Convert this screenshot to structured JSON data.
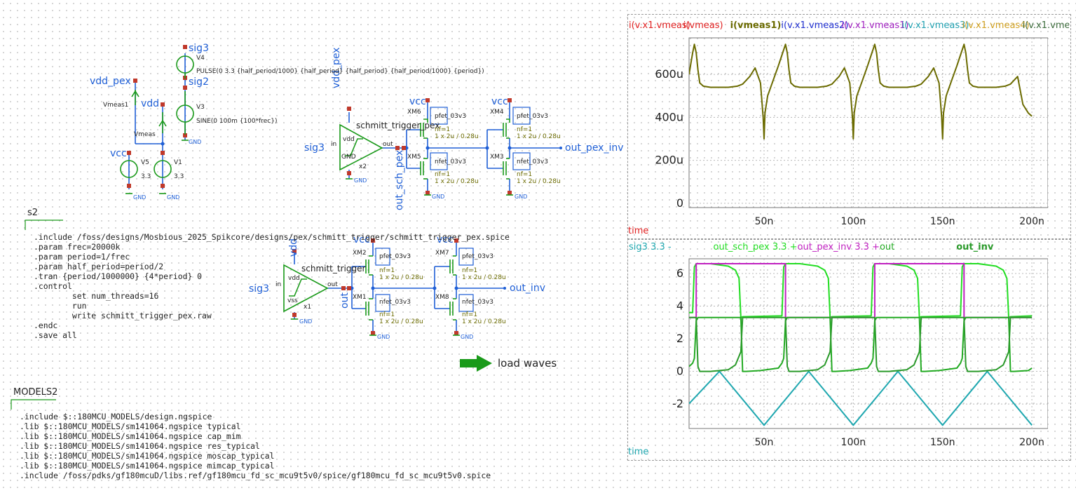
{
  "schematic": {
    "nets": {
      "sig3_top": "sig3",
      "sig2": "sig2",
      "vdd_pex": "vdd_pex",
      "vdd": "vdd",
      "vcc": "vcc",
      "vmeas1": "Vmeas1",
      "vmeas": "Vmeas",
      "sig3_a": "sig3",
      "sig3_b": "sig3",
      "vdd_pex_rot": "vdd_pex",
      "vdd_rot": "vdd",
      "out_sch_pex": "out_sch_pex",
      "out_rot": "out",
      "out_pex_inv": "out_pex_inv",
      "out_inv": "out_inv",
      "vcc_xm6": "vcc",
      "vcc_xm4": "vcc",
      "vcc_xm2": "vcc",
      "vcc_xm7": "vcc",
      "gnd": "GND"
    },
    "sources": {
      "v4_name": "V4",
      "v4_value": "PULSE(0 3.3 {half_period/1000} {half_period} {half_period} {half_period/1000}  {period})",
      "v3_name": "V3",
      "v3_value": "SINE(0 100m {100*frec})",
      "v5_name": "V5",
      "v5_value": "3.3",
      "v1_name": "V1",
      "v1_value": "3.3"
    },
    "buffers": {
      "x2_title": "schmitt_trigger_pex",
      "x2_inst": "x2",
      "x2_top": "vdd",
      "x2_bot": "GND",
      "x1_title": "schmitt_trigger",
      "x1_inst": "x1",
      "x1_top": "vdd",
      "x1_bot": "vss",
      "pin_in": "in",
      "pin_out": "out"
    },
    "transistors": {
      "pfet": "pfet_03v3",
      "nfet": "nfet_03v3",
      "nf": "nf=1",
      "size": "1 x 2u / 0.28u",
      "xm6": "XM6",
      "xm5": "XM5",
      "xm4": "XM4",
      "xm3": "XM3",
      "xm2": "XM2",
      "xm1": "XM1",
      "xm7": "XM7",
      "xm8": "XM8"
    },
    "s2_label": "s2",
    "code_block": [
      ".include /foss/designs/Mosbious_2025_Spikcore/designs/pex/schmitt_trigger/schmitt_trigger_pex.spice",
      ".param frec=20000k",
      ".param period=1/frec",
      ".param half_period=period/2",
      ".tran {period/1000000} {4*period} 0",
      ".control",
      "        set num_threads=16",
      "        run",
      "        write schmitt_trigger_pex.raw",
      ".endc",
      ".save all"
    ],
    "models_label": "MODELS2",
    "models_block": [
      ".include $::180MCU_MODELS/design.ngspice",
      ".lib $::180MCU_MODELS/sm141064.ngspice typical",
      ".lib $::180MCU_MODELS/sm141064.ngspice cap_mim",
      ".lib $::180MCU_MODELS/sm141064.ngspice res_typical",
      ".lib $::180MCU_MODELS/sm141064.ngspice moscap_typical",
      ".lib $::180MCU_MODELS/sm141064.ngspice mimcap_typical",
      ".include /foss/pdks/gf180mcuD/libs.ref/gf180mcu_fd_sc_mcu9t5v0/spice/gf180mcu_fd_sc_mcu9t5v0.spice"
    ],
    "load_waves": "load waves",
    "colors": {
      "net": "#1f5fd6",
      "wire": "#1f5fd6",
      "component": "#1a9a1a",
      "pin": "#c0392b",
      "param": "#6b6b00"
    }
  },
  "plots": {
    "top": {
      "legend": [
        {
          "text": "i(v.x1.vmeas)",
          "color": "#e02020"
        },
        {
          "text": "i(vmeas)",
          "color": "#e02020"
        },
        {
          "text": "i(vmeas1)",
          "color": "#6b6b00"
        },
        {
          "text": "i(v.x1.vmeas2)",
          "color": "#1f2fd0"
        },
        {
          "text": "i(v.x1.vmeas1)",
          "color": "#a020c0"
        },
        {
          "text": "i(v.x1.vmeas3)",
          "color": "#20a0b0"
        },
        {
          "text": "i(v.x1.vmeas4)",
          "color": "#d0a020"
        },
        {
          "text": "i(v.x1.vmeas5)",
          "color": "#3a6a3a"
        },
        {
          "text": "i(v.x1.vme",
          "color": "#1f2fd0"
        }
      ],
      "xlabel": "time"
    },
    "bottom": {
      "legend": [
        {
          "text": "sig3 3.3 -",
          "color": "#20a8b0"
        },
        {
          "text": "out_sch_pex 3.3 +",
          "color": "#22dd22"
        },
        {
          "text": "out_pex_inv 3.3 +",
          "color": "#c020c0"
        },
        {
          "text": "out",
          "color": "#22aa22"
        },
        {
          "text": "out_inv",
          "color": "#2a9a2a"
        }
      ],
      "xlabel": "time"
    },
    "chart_data": [
      {
        "type": "line",
        "title": "",
        "xlabel": "time",
        "ylabel": "",
        "x_ticks": [
          "50n",
          "100n",
          "150n",
          "200n"
        ],
        "y_ticks": [
          "0",
          "200u",
          "400u",
          "600u"
        ],
        "xlim": [
          8e-09,
          2.09e-07
        ],
        "ylim": [
          -2e-05,
          0.00077
        ],
        "series": [
          {
            "name": "i(vmeas1)",
            "color": "#6b6b00",
            "x": [
              8e-09,
              9e-09,
              1e-08,
              1.1e-08,
              1.2e-08,
              1.3e-08,
              1.4e-08,
              1.6e-08,
              2e-08,
              2.5e-08,
              3e-08,
              3.5e-08,
              3.8e-08,
              4.2e-08,
              4.5e-08,
              4.8e-08,
              4.95e-08,
              5e-08,
              5.05e-08,
              5.2e-08,
              5.5e-08,
              5.8e-08,
              6e-08,
              6.2e-08,
              6.3e-08,
              6.4e-08,
              6.5e-08,
              6.7e-08,
              7e-08,
              7.5e-08,
              8e-08,
              8.5e-08,
              8.8e-08,
              9.2e-08,
              9.5e-08,
              9.8e-08,
              9.95e-08,
              1e-07,
              1.005e-07,
              1.02e-07,
              1.05e-07,
              1.08e-07,
              1.1e-07,
              1.12e-07,
              1.13e-07,
              1.14e-07,
              1.15e-07,
              1.17e-07,
              1.2e-07,
              1.25e-07,
              1.3e-07,
              1.35e-07,
              1.38e-07,
              1.42e-07,
              1.45e-07,
              1.48e-07,
              1.495e-07,
              1.5e-07,
              1.505e-07,
              1.52e-07,
              1.55e-07,
              1.58e-07,
              1.6e-07,
              1.62e-07,
              1.63e-07,
              1.64e-07,
              1.65e-07,
              1.67e-07,
              1.7e-07,
              1.75e-07,
              1.8e-07,
              1.85e-07,
              1.88e-07,
              1.92e-07,
              1.95e-07,
              1.98e-07,
              2e-07
            ],
            "values": [
              0.0006,
              0.00065,
              0.0007,
              0.00074,
              0.0007,
              0.00062,
              0.00056,
              0.000545,
              0.00054,
              0.00054,
              0.00054,
              0.000545,
              0.000555,
              0.00059,
              0.00063,
              0.00056,
              0.0004,
              0.0003,
              0.00042,
              0.0005,
              0.00057,
              0.00064,
              0.00069,
              0.00074,
              0.0007,
              0.00062,
              0.00056,
              0.000545,
              0.00054,
              0.00054,
              0.00054,
              0.000545,
              0.000555,
              0.00059,
              0.00063,
              0.00056,
              0.0004,
              0.0003,
              0.00042,
              0.0005,
              0.00057,
              0.00064,
              0.00069,
              0.00074,
              0.0007,
              0.00062,
              0.00056,
              0.000545,
              0.00054,
              0.00054,
              0.00054,
              0.000545,
              0.000555,
              0.00059,
              0.00063,
              0.00056,
              0.0004,
              0.0003,
              0.00042,
              0.0005,
              0.00057,
              0.00064,
              0.00069,
              0.00074,
              0.0007,
              0.00062,
              0.00056,
              0.000545,
              0.00054,
              0.00054,
              0.00054,
              0.000545,
              0.000555,
              0.00059,
              0.00046,
              0.00042,
              0.000405
            ]
          }
        ]
      },
      {
        "type": "line",
        "title": "",
        "xlabel": "time",
        "ylabel": "",
        "x_ticks": [
          "50n",
          "100n",
          "150n",
          "200n"
        ],
        "y_ticks": [
          "-2",
          "0",
          "2",
          "4",
          "6"
        ],
        "xlim": [
          8e-09,
          2.09e-07
        ],
        "ylim": [
          -3.5,
          6.9
        ],
        "series": [
          {
            "name": "sig3",
            "color": "#20a8b0",
            "x": [
              8e-09,
              2.5e-08,
              5e-08,
              7.5e-08,
              1e-07,
              1.25e-07,
              1.5e-07,
              1.75e-07,
              2e-07
            ],
            "values": [
              -1.98,
              0.0,
              -3.3,
              0.0,
              -3.3,
              0.0,
              -3.3,
              0.0,
              -3.3
            ]
          },
          {
            "name": "out_sch_pex",
            "color": "#22dd22",
            "x": [
              8e-09,
              1e-08,
              1.1e-08,
              1.2e-08,
              2e-08,
              3e-08,
              3.4e-08,
              3.6e-08,
              3.7e-08,
              3.8e-08,
              6e-08,
              6.1e-08,
              6.2e-08,
              7e-08,
              8e-08,
              8.4e-08,
              8.6e-08,
              8.7e-08,
              8.8e-08,
              1.1e-07,
              1.11e-07,
              1.12e-07,
              1.2e-07,
              1.3e-07,
              1.34e-07,
              1.36e-07,
              1.37e-07,
              1.38e-07,
              1.6e-07,
              1.61e-07,
              1.62e-07,
              1.7e-07,
              1.8e-07,
              1.84e-07,
              1.86e-07,
              1.87e-07,
              1.88e-07,
              2e-07
            ],
            "values": [
              3.6,
              3.6,
              6.4,
              6.6,
              6.6,
              6.45,
              6.2,
              5.7,
              3.3,
              3.35,
              3.4,
              6.4,
              6.6,
              6.6,
              6.45,
              6.2,
              5.7,
              3.3,
              3.35,
              3.4,
              6.4,
              6.6,
              6.6,
              6.45,
              6.2,
              5.7,
              3.3,
              3.35,
              3.4,
              6.4,
              6.6,
              6.6,
              6.45,
              6.2,
              5.7,
              3.3,
              3.35,
              3.4
            ]
          },
          {
            "name": "out_pex_inv",
            "color": "#c020c0",
            "x": [
              8e-09,
              1.2e-08,
              1.2e-08,
              6.2e-08,
              6.2e-08,
              1.12e-07,
              1.12e-07,
              1.62e-07,
              1.62e-07,
              2e-07
            ],
            "values": [
              3.3,
              3.3,
              6.6,
              6.6,
              3.3,
              3.3,
              6.6,
              6.6,
              3.3,
              3.3
            ]
          },
          {
            "name": "out",
            "color": "#22aa22",
            "x": [
              8e-09,
              1e-08,
              1.1e-08,
              1.2e-08,
              1.3e-08,
              3.7e-08,
              3.8e-08,
              4e-08,
              4.8e-08,
              5.8e-08,
              6e-08,
              6.1e-08,
              6.2e-08,
              6.3e-08,
              8.7e-08,
              8.8e-08,
              9e-08,
              9.8e-08,
              1.08e-07,
              1.1e-07,
              1.11e-07,
              1.12e-07,
              1.13e-07,
              1.37e-07,
              1.38e-07,
              1.4e-07,
              1.48e-07,
              1.58e-07,
              1.6e-07,
              1.61e-07,
              1.62e-07,
              1.63e-07,
              1.87e-07,
              1.88e-07,
              1.9e-07,
              1.98e-07,
              2e-07
            ],
            "values": [
              0.3,
              0.5,
              0.8,
              3.1,
              3.3,
              3.3,
              0.0,
              0.0,
              0.05,
              0.2,
              0.5,
              0.8,
              3.1,
              3.3,
              3.3,
              0.0,
              0.0,
              0.05,
              0.2,
              0.5,
              0.8,
              3.1,
              3.3,
              3.3,
              0.0,
              0.0,
              0.05,
              0.2,
              0.5,
              0.8,
              3.1,
              3.3,
              3.3,
              0.0,
              0.0,
              0.05,
              0.2
            ]
          },
          {
            "name": "out_inv",
            "color": "#2a9a2a",
            "x": [
              8e-09,
              1.2e-08,
              1.3e-08,
              1.4e-08,
              2e-08,
              3e-08,
              3.4e-08,
              3.7e-08,
              3.8e-08,
              6.2e-08,
              6.3e-08,
              6.4e-08,
              7e-08,
              8e-08,
              8.4e-08,
              8.7e-08,
              8.8e-08,
              1.12e-07,
              1.13e-07,
              1.14e-07,
              1.2e-07,
              1.3e-07,
              1.34e-07,
              1.37e-07,
              1.38e-07,
              1.62e-07,
              1.63e-07,
              1.64e-07,
              1.7e-07,
              1.8e-07,
              1.84e-07,
              1.87e-07,
              1.88e-07,
              2e-07
            ],
            "values": [
              3.3,
              3.3,
              0.3,
              0.0,
              0.0,
              0.1,
              0.4,
              1.2,
              3.3,
              3.3,
              0.3,
              0.0,
              0.0,
              0.1,
              0.4,
              1.2,
              3.3,
              3.3,
              0.3,
              0.0,
              0.0,
              0.1,
              0.4,
              1.2,
              3.3,
              3.3,
              0.3,
              0.0,
              0.0,
              0.1,
              0.4,
              1.2,
              3.3,
              3.3
            ]
          }
        ]
      }
    ]
  }
}
